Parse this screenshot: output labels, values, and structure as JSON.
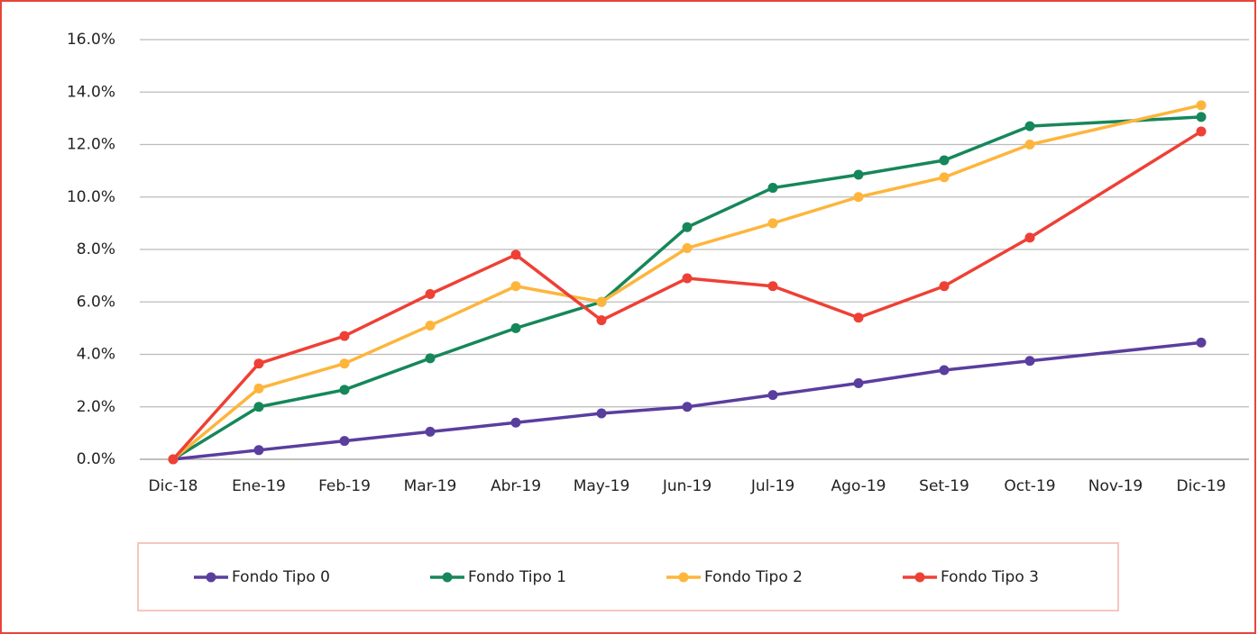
{
  "chart_data": {
    "type": "line",
    "categories": [
      "Dic-18",
      "Ene-19",
      "Feb-19",
      "Mar-19",
      "Abr-19",
      "May-19",
      "Jun-19",
      "Jul-19",
      "Ago-19",
      "Set-19",
      "Oct-19",
      "Nov-19",
      "Dic-19"
    ],
    "series": [
      {
        "name": "Fondo Tipo 0",
        "color": "#5a3e9e",
        "values": [
          0,
          0.35,
          0.7,
          1.05,
          1.4,
          1.75,
          2.0,
          2.45,
          2.9,
          3.4,
          3.75,
          null,
          4.45
        ]
      },
      {
        "name": "Fondo Tipo 1",
        "color": "#16875a",
        "values": [
          0,
          2.0,
          2.65,
          3.85,
          5.0,
          6.0,
          8.85,
          10.35,
          10.85,
          11.4,
          12.7,
          null,
          13.05
        ]
      },
      {
        "name": "Fondo Tipo 2",
        "color": "#fdb53c",
        "values": [
          0,
          2.7,
          3.65,
          5.1,
          6.6,
          6.0,
          8.05,
          9.0,
          10.0,
          10.75,
          12.0,
          null,
          13.5
        ]
      },
      {
        "name": "Fondo Tipo 3",
        "color": "#ee4035",
        "values": [
          0,
          3.65,
          4.7,
          6.3,
          7.8,
          5.3,
          6.9,
          6.6,
          5.4,
          6.6,
          8.45,
          null,
          12.5
        ]
      }
    ],
    "ylim": [
      0,
      16
    ],
    "yticks": [
      {
        "value": 0,
        "label": "0.0%"
      },
      {
        "value": 2,
        "label": "2.0%"
      },
      {
        "value": 4,
        "label": "4.0%"
      },
      {
        "value": 6,
        "label": "6.0%"
      },
      {
        "value": 8,
        "label": "8.0%"
      },
      {
        "value": 10,
        "label": "10.0%"
      },
      {
        "value": 12,
        "label": "12.0%"
      },
      {
        "value": 14,
        "label": "14.0%"
      },
      {
        "value": 16,
        "label": "16.0%"
      }
    ],
    "grid": true,
    "legend": "bottom"
  }
}
